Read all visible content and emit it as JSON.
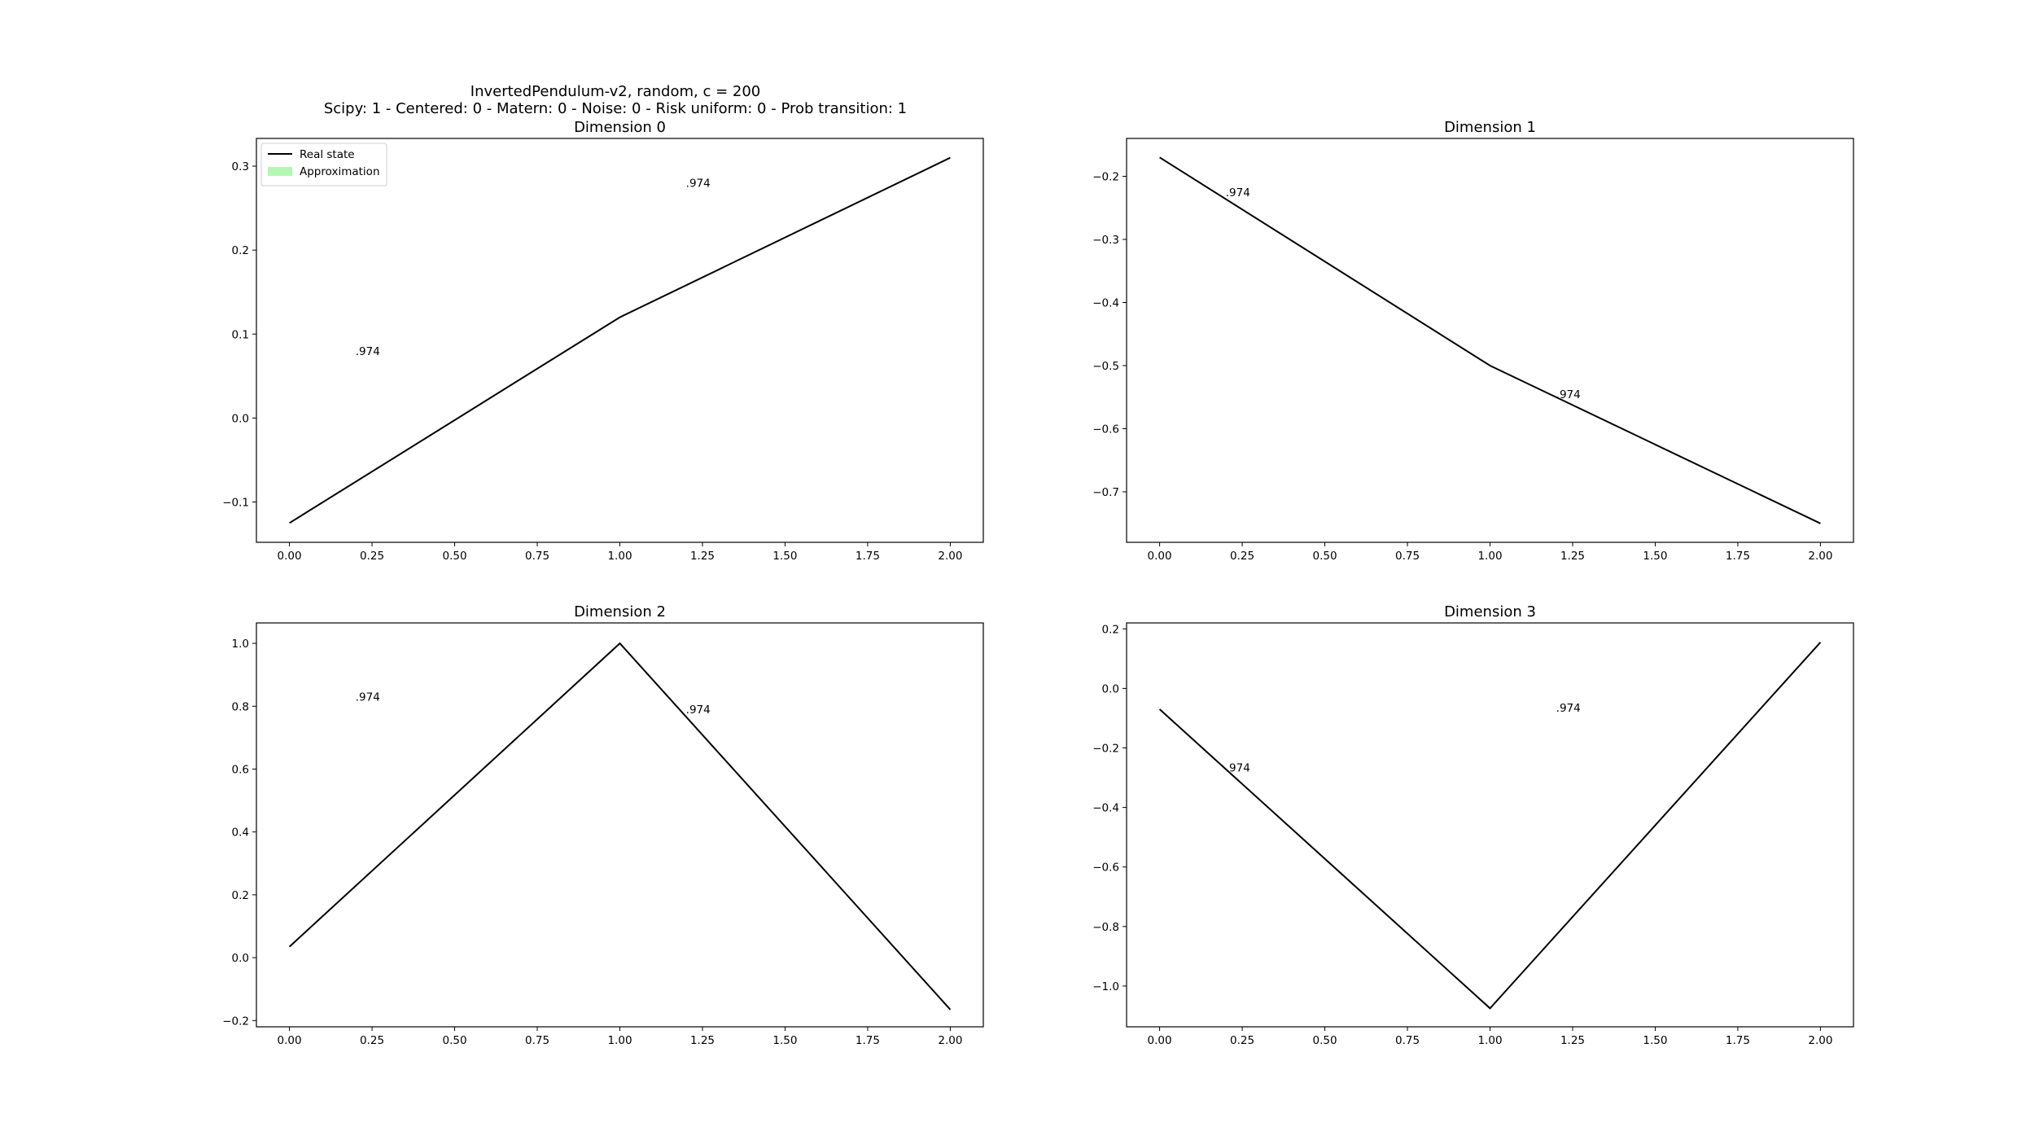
{
  "figure": {
    "suptitle_line1": "InvertedPendulum-v2, random, c = 200",
    "suptitle_line2": "Scipy: 1 - Centered: 0 - Matern: 0 - Noise: 0 - Risk uniform: 0 - Prob transition: 1",
    "legend": {
      "real_label": "Real state",
      "approx_label": "Approximation",
      "placement": "upper-left"
    },
    "colors": {
      "line": "#000000",
      "approx_fill": "#b3f7b3",
      "axes": "#000000"
    }
  },
  "chart_data": [
    {
      "type": "line",
      "title": "Dimension 0",
      "x": [
        0,
        1,
        2
      ],
      "series": [
        {
          "name": "Real state",
          "values": [
            -0.125,
            0.12,
            0.31
          ]
        }
      ],
      "xlim": [
        -0.1,
        2.1
      ],
      "ylim": [
        -0.148,
        0.333
      ],
      "xticks": [
        0,
        0.25,
        0.5,
        0.75,
        1.0,
        1.25,
        1.5,
        1.75,
        2.0
      ],
      "xtick_labels": [
        "0.00",
        "0.25",
        "0.50",
        "0.75",
        "1.00",
        "1.25",
        "1.50",
        "1.75",
        "2.00"
      ],
      "yticks": [
        -0.1,
        0.0,
        0.1,
        0.2,
        0.3
      ],
      "ytick_labels": [
        "−0.1",
        "0.0",
        "0.1",
        "0.2",
        "0.3"
      ],
      "annotations": [
        {
          "text": ".974",
          "x": 0.2,
          "y": 0.08
        },
        {
          "text": ".974",
          "x": 1.2,
          "y": 0.28
        }
      ],
      "legend": true
    },
    {
      "type": "line",
      "title": "Dimension 1",
      "x": [
        0,
        1,
        2
      ],
      "series": [
        {
          "name": "Real state",
          "values": [
            -0.17,
            -0.5,
            -0.75
          ]
        }
      ],
      "xlim": [
        -0.1,
        2.1
      ],
      "ylim": [
        -0.78,
        -0.14
      ],
      "xticks": [
        0,
        0.25,
        0.5,
        0.75,
        1.0,
        1.25,
        1.5,
        1.75,
        2.0
      ],
      "xtick_labels": [
        "0.00",
        "0.25",
        "0.50",
        "0.75",
        "1.00",
        "1.25",
        "1.50",
        "1.75",
        "2.00"
      ],
      "yticks": [
        -0.7,
        -0.6,
        -0.5,
        -0.4,
        -0.3,
        -0.2
      ],
      "ytick_labels": [
        "−0.7",
        "−0.6",
        "−0.5",
        "−0.4",
        "−0.3",
        "−0.2"
      ],
      "annotations": [
        {
          "text": ".974",
          "x": 0.2,
          "y": -0.225
        },
        {
          "text": ".974",
          "x": 1.2,
          "y": -0.545
        }
      ],
      "legend": false
    },
    {
      "type": "line",
      "title": "Dimension 2",
      "x": [
        0,
        1,
        2
      ],
      "series": [
        {
          "name": "Real state",
          "values": [
            0.035,
            1.0,
            -0.165
          ]
        }
      ],
      "xlim": [
        -0.1,
        2.1
      ],
      "ylim": [
        -0.22,
        1.065
      ],
      "xticks": [
        0,
        0.25,
        0.5,
        0.75,
        1.0,
        1.25,
        1.5,
        1.75,
        2.0
      ],
      "xtick_labels": [
        "0.00",
        "0.25",
        "0.50",
        "0.75",
        "1.00",
        "1.25",
        "1.50",
        "1.75",
        "2.00"
      ],
      "yticks": [
        -0.2,
        0.0,
        0.2,
        0.4,
        0.6,
        0.8,
        1.0
      ],
      "ytick_labels": [
        "−0.2",
        "0.0",
        "0.2",
        "0.4",
        "0.6",
        "0.8",
        "1.0"
      ],
      "annotations": [
        {
          "text": ".974",
          "x": 0.2,
          "y": 0.83
        },
        {
          "text": ".974",
          "x": 1.2,
          "y": 0.79
        }
      ],
      "legend": false
    },
    {
      "type": "line",
      "title": "Dimension 3",
      "x": [
        0,
        1,
        2
      ],
      "series": [
        {
          "name": "Real state",
          "values": [
            -0.07,
            -1.075,
            0.155
          ]
        }
      ],
      "xlim": [
        -0.1,
        2.1
      ],
      "ylim": [
        -1.137,
        0.22
      ],
      "xticks": [
        0,
        0.25,
        0.5,
        0.75,
        1.0,
        1.25,
        1.5,
        1.75,
        2.0
      ],
      "xtick_labels": [
        "0.00",
        "0.25",
        "0.50",
        "0.75",
        "1.00",
        "1.25",
        "1.50",
        "1.75",
        "2.00"
      ],
      "yticks": [
        -1.0,
        -0.8,
        -0.6,
        -0.4,
        -0.2,
        0.0,
        0.2
      ],
      "ytick_labels": [
        "−1.0",
        "−0.8",
        "−0.6",
        "−0.4",
        "−0.2",
        "0.0",
        "0.2"
      ],
      "annotations": [
        {
          "text": ".974",
          "x": 0.2,
          "y": -0.265
        },
        {
          "text": ".974",
          "x": 1.2,
          "y": -0.065
        }
      ],
      "legend": false
    }
  ]
}
